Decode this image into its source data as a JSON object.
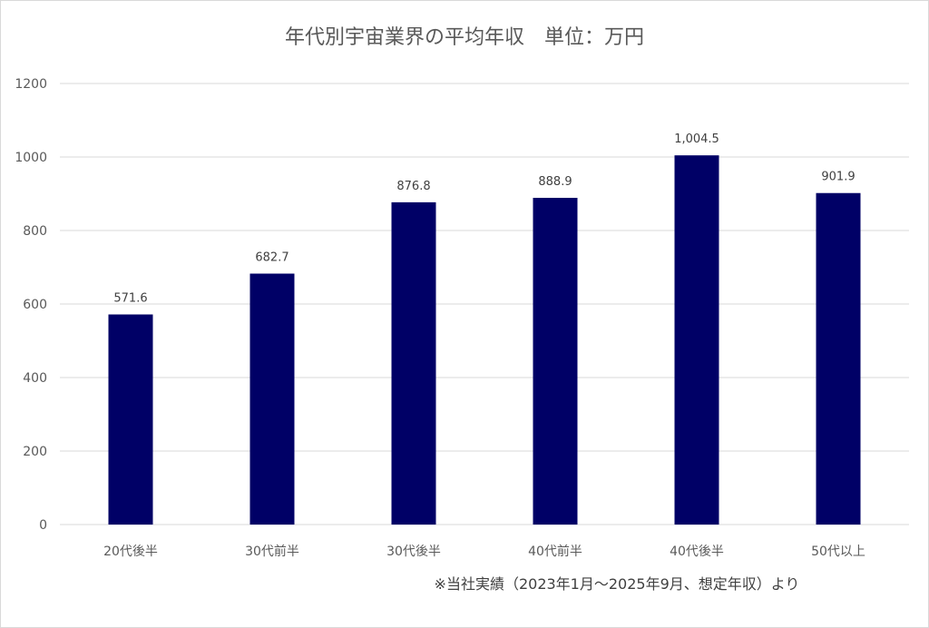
{
  "chart_data": {
    "type": "bar",
    "title": "年代別宇宙業界の平均年収　単位：万円",
    "categories": [
      "20代後半",
      "30代前半",
      "30代後半",
      "40代前半",
      "40代後半",
      "50代以上"
    ],
    "values": [
      571.6,
      682.7,
      876.8,
      888.9,
      1004.5,
      901.9
    ],
    "data_labels": [
      "571.6",
      "682.7",
      "876.8",
      "888.9",
      "1,004.5",
      "901.9"
    ],
    "ylim": [
      0,
      1200
    ],
    "yticks": [
      0,
      200,
      400,
      600,
      800,
      1000,
      1200
    ],
    "grid": true,
    "legend": "none",
    "bar_color": "#000066",
    "gridline_color": "#d9d9d9",
    "footnote": "※当社実績（2023年1月～2025年9月、想定年収）より"
  }
}
